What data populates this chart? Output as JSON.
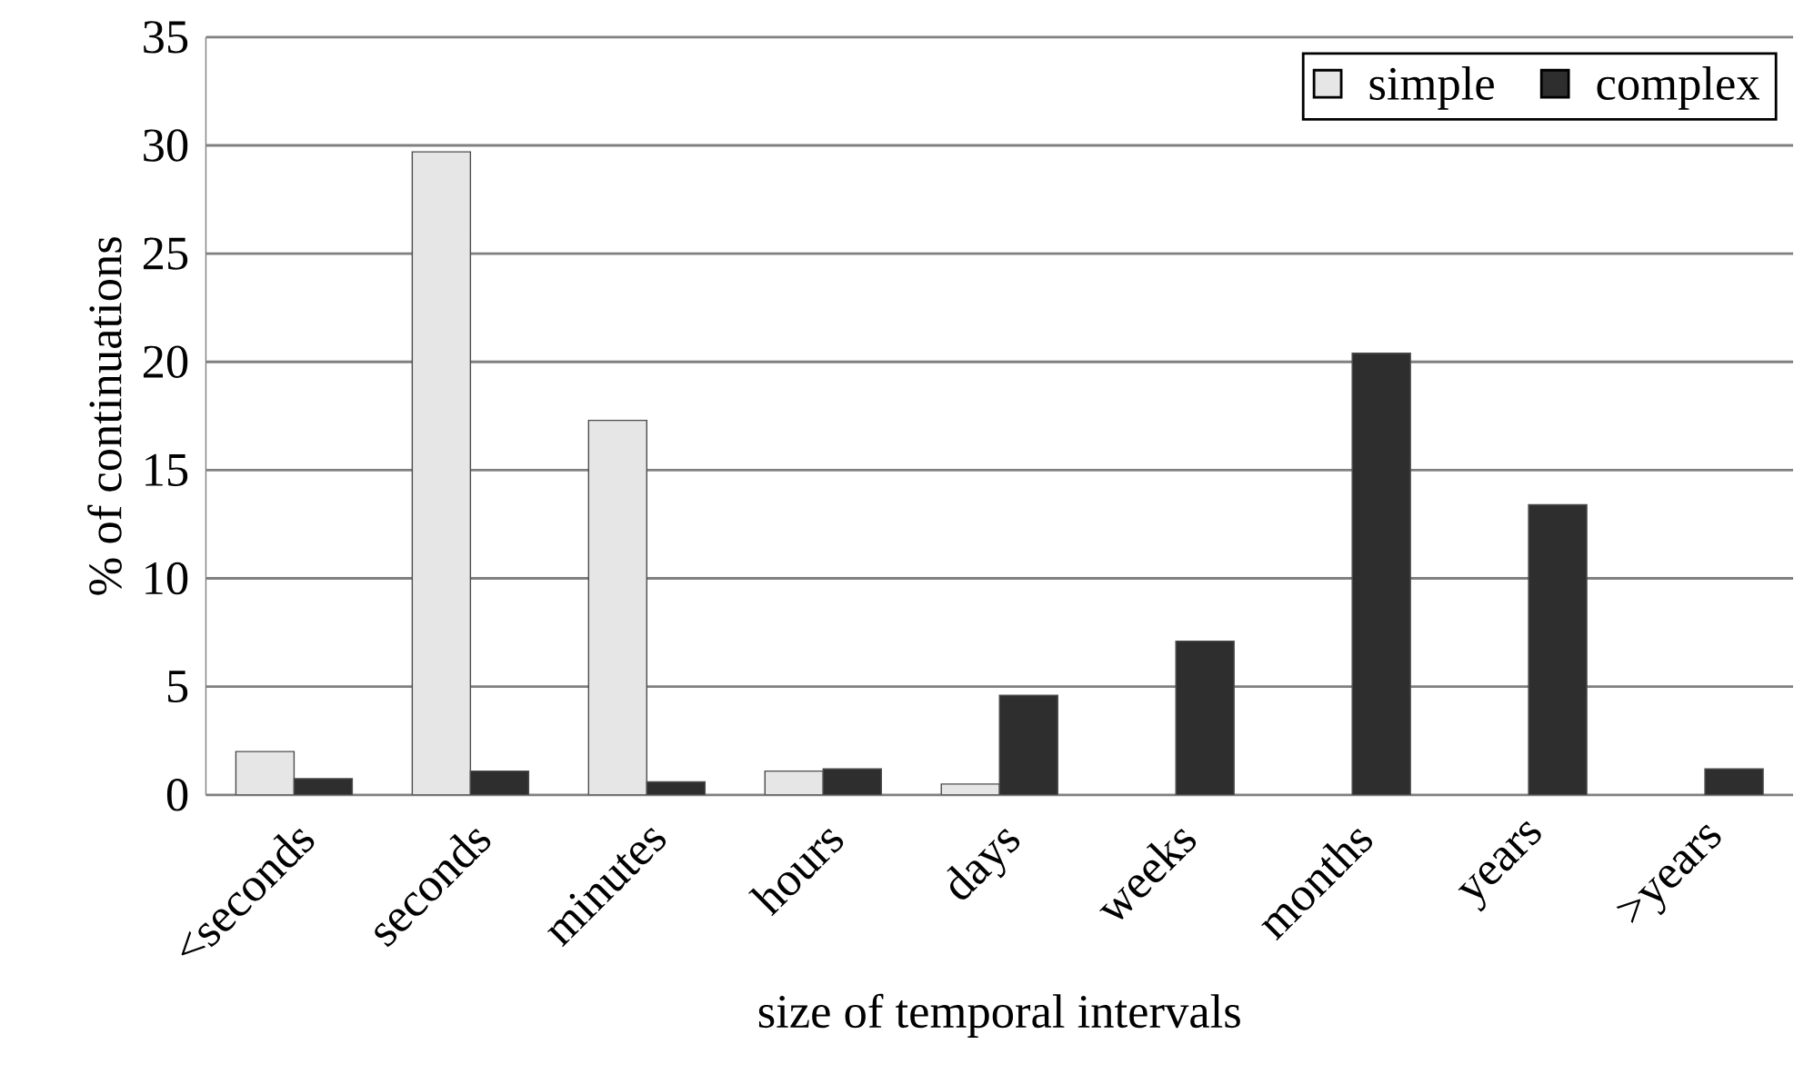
{
  "chart_data": {
    "type": "bar",
    "xlabel": "size of temporal intervals",
    "ylabel": "% of continuations",
    "categories": [
      "<seconds",
      "seconds",
      "minutes",
      "hours",
      "days",
      "weeks",
      "months",
      "years",
      ">years"
    ],
    "series": [
      {
        "name": "simple",
        "color": "#e6e6e6",
        "values": [
          2.0,
          29.7,
          17.3,
          1.1,
          0.5,
          null,
          null,
          null,
          null
        ]
      },
      {
        "name": "complex",
        "color": "#2e2e2e",
        "values": [
          0.75,
          1.1,
          0.6,
          1.2,
          4.6,
          7.1,
          20.4,
          13.4,
          1.2
        ]
      }
    ],
    "ylim": [
      0,
      35
    ],
    "yticks": [
      0,
      5,
      10,
      15,
      20,
      25,
      30,
      35
    ],
    "grid": "y",
    "legend": "top right"
  }
}
